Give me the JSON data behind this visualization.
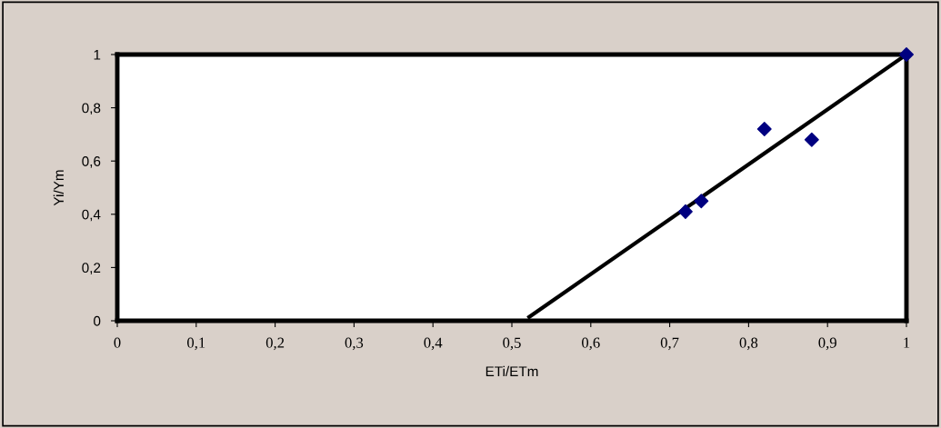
{
  "chart_data": {
    "type": "scatter",
    "xlabel": "ETi/ETm",
    "ylabel": "Yi/Ym",
    "x": [
      0.72,
      0.74,
      0.82,
      0.88,
      1
    ],
    "series": [
      {
        "color": "#000080",
        "marker": "diamond",
        "values": [
          0.41,
          0.45,
          0.72,
          0.68,
          1
        ]
      },
      {
        "type": "line",
        "color": "#000000",
        "marker": "none",
        "line_style": "solid",
        "x": [
          0.52,
          1
        ],
        "values": [
          0.01,
          1
        ]
      }
    ],
    "xlim": [
      0,
      1
    ],
    "ylim": [
      0,
      1
    ],
    "xticks": [
      0,
      {
        "value": 0.1,
        "label": "0,1"
      },
      {
        "value": 0.2,
        "label": "0,2"
      },
      {
        "value": 0.3,
        "label": "0,3"
      },
      {
        "value": 0.4,
        "label": "0,4"
      },
      {
        "value": 0.5,
        "label": "0,5"
      },
      {
        "value": 0.6,
        "label": "0,6"
      },
      {
        "value": 0.7,
        "label": "0,7"
      },
      {
        "value": 0.8,
        "label": "0,8"
      },
      {
        "value": 0.9,
        "label": "0,9"
      },
      1
    ],
    "yticks": [
      0,
      {
        "value": 0.2,
        "label": "0,2"
      },
      {
        "value": 0.4,
        "label": "0,4"
      },
      {
        "value": 0.6,
        "label": "0,6"
      },
      {
        "value": 0.8,
        "label": "0,8"
      },
      1
    ],
    "grid": false,
    "legend": false
  }
}
